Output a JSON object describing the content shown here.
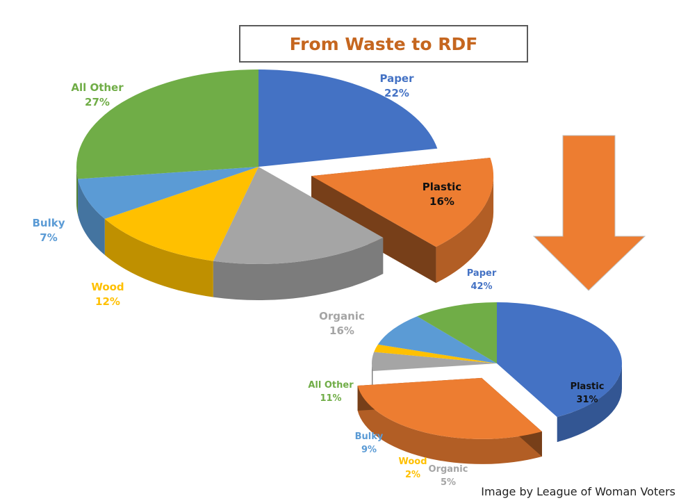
{
  "title": "From Waste to RDF",
  "credit": "Image by League of Woman Voters",
  "colors": {
    "Paper": "#4472c4",
    "Plastic": "#ed7d31",
    "Organic": "#a5a5a5",
    "Wood": "#ffc000",
    "Bulky": "#5b9bd5",
    "All Other": "#70ad47",
    "arrow": "#ed7d31",
    "title": "#c5661f"
  },
  "chart_data": [
    {
      "type": "pie",
      "title": "",
      "slices": [
        {
          "label": "Paper",
          "value": 22,
          "display": "22%"
        },
        {
          "label": "Plastic",
          "value": 16,
          "display": "16%",
          "exploded": true
        },
        {
          "label": "Organic",
          "value": 16,
          "display": "16%"
        },
        {
          "label": "Wood",
          "value": 12,
          "display": "12%"
        },
        {
          "label": "Bulky",
          "value": 7,
          "display": "7%"
        },
        {
          "label": "All Other",
          "value": 27,
          "display": "27%"
        }
      ]
    },
    {
      "type": "pie",
      "title": "",
      "slices": [
        {
          "label": "Paper",
          "value": 42,
          "display": "42%"
        },
        {
          "label": "Plastic",
          "value": 31,
          "display": "31%",
          "exploded": true
        },
        {
          "label": "Organic",
          "value": 5,
          "display": "5%"
        },
        {
          "label": "Wood",
          "value": 2,
          "display": "2%"
        },
        {
          "label": "Bulky",
          "value": 9,
          "display": "9%"
        },
        {
          "label": "All Other",
          "value": 11,
          "display": "11%"
        }
      ]
    }
  ]
}
